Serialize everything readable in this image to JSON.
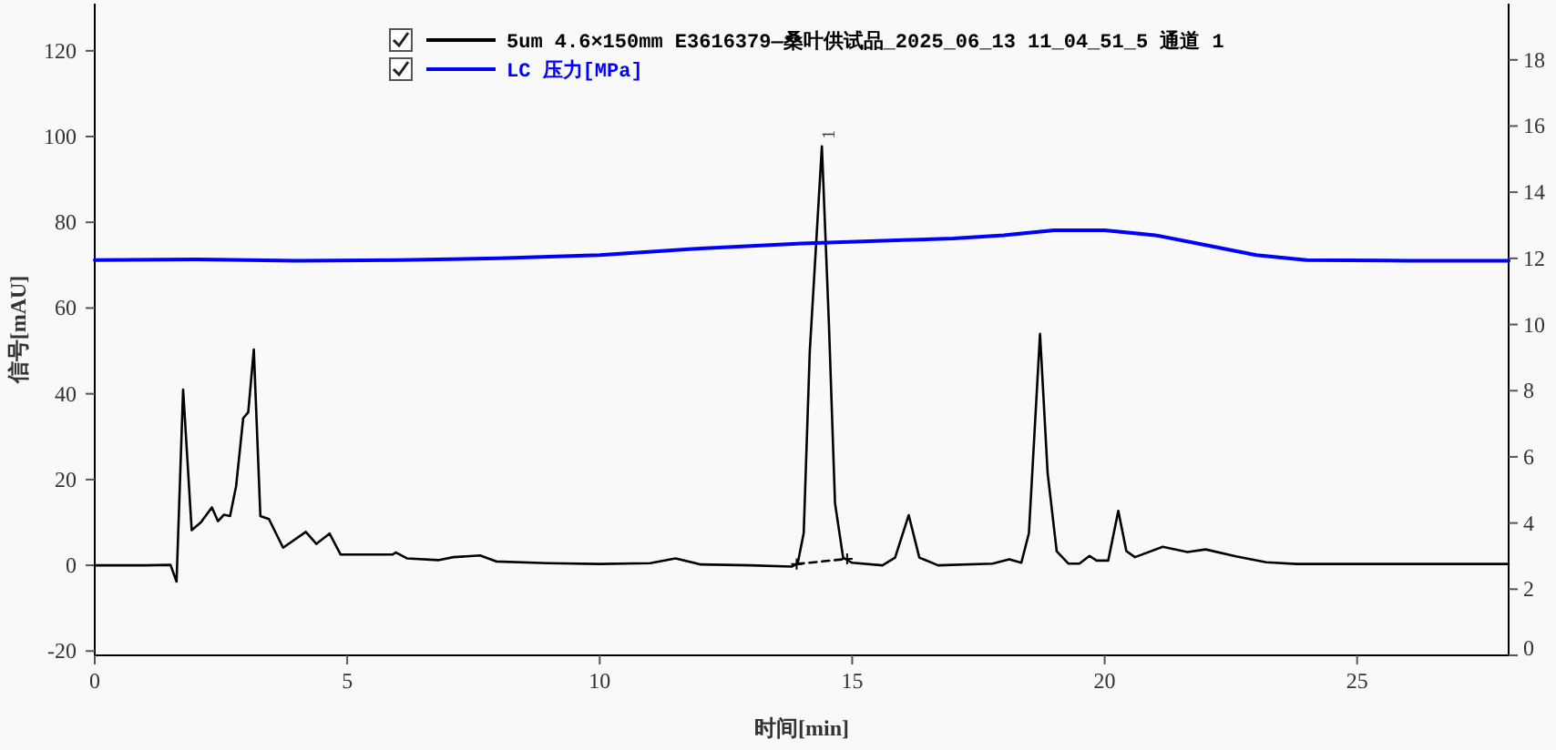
{
  "chart_data": {
    "type": "line",
    "xlabel": "时间[min]",
    "ylabel": "信号[mAU]",
    "xlim": [
      0,
      28
    ],
    "ylim": [
      -21,
      131
    ],
    "y2lim": [
      0,
      19.7
    ],
    "xticks": [
      0,
      5,
      10,
      15,
      20,
      25
    ],
    "yticks": [
      -20,
      0,
      20,
      40,
      60,
      80,
      100,
      120
    ],
    "y2ticks": [
      0,
      2,
      4,
      6,
      8,
      10,
      12,
      14,
      16,
      18
    ],
    "legend": "top right",
    "grid": false,
    "marker": "none",
    "line_style": "solid",
    "annotations": [
      {
        "text": "1",
        "x": 14.4,
        "y": 97.7
      }
    ],
    "series": [
      {
        "name": "5um 4.6×150mm E3616379—桑叶供试品_2025_06_13 11_04_51_5 通道 1",
        "color": "#000000",
        "x": [
          0,
          0.5,
          1.0,
          1.5,
          1.62,
          1.75,
          1.92,
          2.1,
          2.32,
          2.44,
          2.56,
          2.68,
          2.8,
          2.94,
          3.04,
          3.15,
          3.28,
          3.45,
          3.73,
          4.18,
          4.39,
          4.65,
          4.87,
          5.5,
          5.9,
          5.96,
          6.19,
          6.8,
          7.1,
          7.63,
          7.95,
          8.97,
          10,
          11,
          11.5,
          12,
          13,
          13.8,
          13.92,
          14.04,
          14.16,
          14.4,
          14.54,
          14.66,
          14.82,
          15.0,
          15.6,
          15.85,
          16.12,
          16.33,
          16.7,
          17.78,
          18.11,
          18.35,
          18.5,
          18.72,
          18.87,
          19.05,
          19.28,
          19.5,
          19.7,
          19.84,
          20.07,
          20.27,
          20.43,
          20.6,
          21.15,
          21.64,
          22.0,
          22.6,
          23.2,
          23.8,
          28
        ],
        "values": [
          0,
          0,
          0,
          0.1,
          -3.8,
          41,
          8.2,
          10,
          13.5,
          10.3,
          11.8,
          11.5,
          18.5,
          34.3,
          35.7,
          50.3,
          11.5,
          10.8,
          4.1,
          7.8,
          5.0,
          7.4,
          2.5,
          2.5,
          2.5,
          3,
          1.6,
          1.2,
          1.9,
          2.3,
          0.9,
          0.5,
          0.3,
          0.5,
          1.6,
          0.2,
          0,
          -0.3,
          0.4,
          7.5,
          49.8,
          97.7,
          56,
          14.5,
          1.8,
          0.6,
          0,
          1.8,
          11.7,
          1.8,
          0,
          0.4,
          1.4,
          0.6,
          7.5,
          54,
          21.6,
          3.3,
          0.4,
          0.4,
          2.2,
          1.1,
          1.1,
          12.7,
          3.3,
          1.9,
          4.3,
          3.1,
          3.7,
          2.1,
          0.7,
          0.3,
          0.3
        ]
      },
      {
        "name": "LC 压力[MPa]",
        "color": "#0000ff",
        "axis": "y2",
        "x": [
          0,
          2,
          4,
          6,
          8,
          10,
          12,
          14,
          16,
          17,
          18,
          19,
          20,
          21,
          22,
          23,
          24,
          26,
          28
        ],
        "values": [
          11.95,
          11.97,
          11.93,
          11.95,
          12.0,
          12.1,
          12.3,
          12.45,
          12.55,
          12.6,
          12.7,
          12.85,
          12.85,
          12.7,
          12.4,
          12.1,
          11.95,
          11.93,
          11.93
        ]
      },
      {
        "color": "#000000",
        "line_style": "dashed",
        "marker": "cross",
        "x": [
          13.9,
          14.9
        ],
        "values": [
          0.3,
          1.5
        ]
      }
    ]
  }
}
